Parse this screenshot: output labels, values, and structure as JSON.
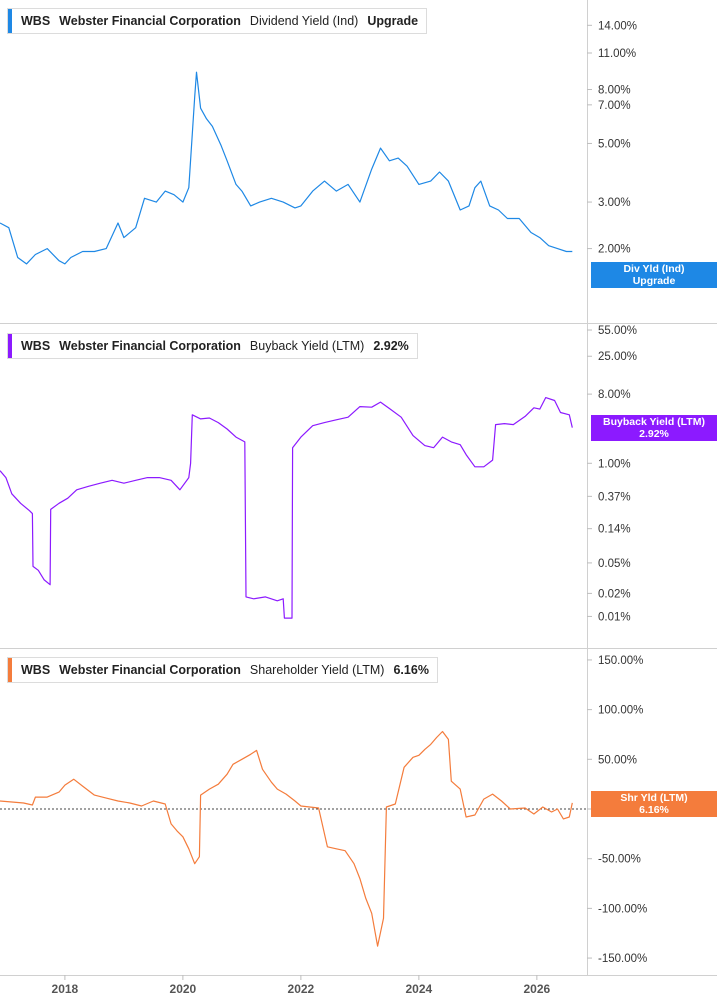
{
  "panels": [
    {
      "ticker": "WBS",
      "company": "Webster Financial Corporation",
      "metric": "Dividend Yield (Ind)",
      "value": "Upgrade",
      "color": "#1e88e5",
      "tag_line1": "Div Yld (Ind)",
      "tag_line2": "Upgrade"
    },
    {
      "ticker": "WBS",
      "company": "Webster Financial Corporation",
      "metric": "Buyback Yield (LTM)",
      "value": "2.92%",
      "color": "#8c1aff",
      "tag_line1": "Buyback Yield (LTM)",
      "tag_line2": "2.92%"
    },
    {
      "ticker": "WBS",
      "company": "Webster Financial Corporation",
      "metric": "Shareholder Yield (LTM)",
      "value": "6.16%",
      "color": "#f47c3c",
      "tag_line1": "Shr Yld (LTM)",
      "tag_line2": "6.16%"
    }
  ],
  "chart_data": [
    {
      "type": "line",
      "title": "WBS Webster Financial Corporation Dividend Yield (Ind)",
      "yscale": "log",
      "ylim": [
        1.3,
        16
      ],
      "xlim": [
        2016.9,
        2026.85
      ],
      "y_ticks": [
        "14.00%",
        "11.00%",
        "8.00%",
        "7.00%",
        "5.00%",
        "3.00%",
        "2.00%"
      ],
      "y_tick_values": [
        14,
        11,
        8,
        7,
        5,
        3,
        2
      ],
      "series": [
        {
          "values": [
            [
              2016.9,
              2.5
            ],
            [
              2017.05,
              2.4
            ],
            [
              2017.2,
              1.85
            ],
            [
              2017.35,
              1.75
            ],
            [
              2017.5,
              1.9
            ],
            [
              2017.7,
              2.0
            ],
            [
              2017.9,
              1.8
            ],
            [
              2018.0,
              1.75
            ],
            [
              2018.1,
              1.85
            ],
            [
              2018.3,
              1.95
            ],
            [
              2018.5,
              1.95
            ],
            [
              2018.7,
              2.0
            ],
            [
              2018.9,
              2.5
            ],
            [
              2019.0,
              2.2
            ],
            [
              2019.2,
              2.4
            ],
            [
              2019.35,
              3.1
            ],
            [
              2019.55,
              3.0
            ],
            [
              2019.7,
              3.3
            ],
            [
              2019.85,
              3.2
            ],
            [
              2020.0,
              3.0
            ],
            [
              2020.1,
              3.4
            ],
            [
              2020.2,
              7.5
            ],
            [
              2020.23,
              9.3
            ],
            [
              2020.3,
              6.8
            ],
            [
              2020.4,
              6.2
            ],
            [
              2020.5,
              5.8
            ],
            [
              2020.65,
              4.9
            ],
            [
              2020.75,
              4.3
            ],
            [
              2020.9,
              3.5
            ],
            [
              2021.0,
              3.3
            ],
            [
              2021.15,
              2.9
            ],
            [
              2021.3,
              3.0
            ],
            [
              2021.5,
              3.1
            ],
            [
              2021.7,
              3.0
            ],
            [
              2021.9,
              2.85
            ],
            [
              2022.0,
              2.9
            ],
            [
              2022.2,
              3.3
            ],
            [
              2022.4,
              3.6
            ],
            [
              2022.6,
              3.3
            ],
            [
              2022.8,
              3.5
            ],
            [
              2023.0,
              3.0
            ],
            [
              2023.2,
              4.0
            ],
            [
              2023.35,
              4.8
            ],
            [
              2023.5,
              4.3
            ],
            [
              2023.65,
              4.4
            ],
            [
              2023.8,
              4.1
            ],
            [
              2024.0,
              3.5
            ],
            [
              2024.2,
              3.6
            ],
            [
              2024.35,
              3.9
            ],
            [
              2024.5,
              3.6
            ],
            [
              2024.7,
              2.8
            ],
            [
              2024.85,
              2.9
            ],
            [
              2024.95,
              3.4
            ],
            [
              2025.05,
              3.6
            ],
            [
              2025.2,
              2.9
            ],
            [
              2025.35,
              2.8
            ],
            [
              2025.5,
              2.6
            ],
            [
              2025.7,
              2.6
            ],
            [
              2025.9,
              2.3
            ],
            [
              2026.05,
              2.2
            ],
            [
              2026.2,
              2.05
            ],
            [
              2026.35,
              2.0
            ],
            [
              2026.5,
              1.95
            ],
            [
              2026.6,
              1.95
            ]
          ]
        }
      ]
    },
    {
      "type": "line",
      "title": "WBS Webster Financial Corporation Buyback Yield (LTM)",
      "yscale": "log",
      "ylim": [
        0.0075,
        70
      ],
      "xlim": [
        2016.9,
        2026.85
      ],
      "y_ticks": [
        "55.00%",
        "25.00%",
        "8.00%",
        "1.00%",
        "0.37%",
        "0.14%",
        "0.05%",
        "0.02%",
        "0.01%"
      ],
      "y_tick_values": [
        55,
        25,
        8,
        1,
        0.37,
        0.14,
        0.05,
        0.02,
        0.01
      ],
      "series": [
        {
          "values": [
            [
              2016.9,
              0.8
            ],
            [
              2017.0,
              0.65
            ],
            [
              2017.1,
              0.4
            ],
            [
              2017.25,
              0.3
            ],
            [
              2017.4,
              0.24
            ],
            [
              2017.45,
              0.22
            ],
            [
              2017.46,
              0.045
            ],
            [
              2017.55,
              0.04
            ],
            [
              2017.65,
              0.03
            ],
            [
              2017.75,
              0.026
            ],
            [
              2017.76,
              0.25
            ],
            [
              2017.9,
              0.3
            ],
            [
              2018.05,
              0.35
            ],
            [
              2018.2,
              0.45
            ],
            [
              2018.4,
              0.5
            ],
            [
              2018.6,
              0.55
            ],
            [
              2018.8,
              0.6
            ],
            [
              2019.0,
              0.55
            ],
            [
              2019.2,
              0.6
            ],
            [
              2019.4,
              0.65
            ],
            [
              2019.6,
              0.65
            ],
            [
              2019.8,
              0.6
            ],
            [
              2019.95,
              0.45
            ],
            [
              2020.1,
              0.65
            ],
            [
              2020.13,
              1.0
            ],
            [
              2020.16,
              4.3
            ],
            [
              2020.3,
              3.8
            ],
            [
              2020.45,
              3.9
            ],
            [
              2020.6,
              3.4
            ],
            [
              2020.75,
              2.8
            ],
            [
              2020.9,
              2.2
            ],
            [
              2021.05,
              1.9
            ],
            [
              2021.07,
              0.018
            ],
            [
              2021.2,
              0.017
            ],
            [
              2021.4,
              0.018
            ],
            [
              2021.6,
              0.016
            ],
            [
              2021.7,
              0.017
            ],
            [
              2021.72,
              0.0095
            ],
            [
              2021.85,
              0.0095
            ],
            [
              2021.86,
              1.6
            ],
            [
              2022.0,
              2.2
            ],
            [
              2022.2,
              3.1
            ],
            [
              2022.4,
              3.4
            ],
            [
              2022.6,
              3.7
            ],
            [
              2022.8,
              4.0
            ],
            [
              2023.0,
              5.5
            ],
            [
              2023.2,
              5.4
            ],
            [
              2023.35,
              6.3
            ],
            [
              2023.5,
              5.2
            ],
            [
              2023.7,
              4.0
            ],
            [
              2023.9,
              2.3
            ],
            [
              2024.1,
              1.7
            ],
            [
              2024.25,
              1.6
            ],
            [
              2024.4,
              2.2
            ],
            [
              2024.55,
              1.9
            ],
            [
              2024.7,
              1.75
            ],
            [
              2024.8,
              1.3
            ],
            [
              2024.95,
              0.9
            ],
            [
              2025.1,
              0.9
            ],
            [
              2025.25,
              1.1
            ],
            [
              2025.3,
              3.2
            ],
            [
              2025.45,
              3.3
            ],
            [
              2025.6,
              3.2
            ],
            [
              2025.8,
              4.1
            ],
            [
              2025.95,
              5.3
            ],
            [
              2026.05,
              5.1
            ],
            [
              2026.15,
              7.2
            ],
            [
              2026.3,
              6.6
            ],
            [
              2026.4,
              4.6
            ],
            [
              2026.55,
              4.3
            ],
            [
              2026.6,
              2.92
            ]
          ]
        }
      ]
    },
    {
      "type": "line",
      "title": "WBS Webster Financial Corporation Shareholder Yield (LTM)",
      "yscale": "linear",
      "ylim": [
        -160,
        160
      ],
      "xlim": [
        2016.9,
        2026.85
      ],
      "y_ticks": [
        "150.00%",
        "100.00%",
        "50.00%",
        "0.00%",
        "-50.00%",
        "-100.00%",
        "-150.00%"
      ],
      "y_tick_values": [
        150,
        100,
        50,
        0,
        -50,
        -100,
        -150
      ],
      "series": [
        {
          "values": [
            [
              2016.9,
              8
            ],
            [
              2017.1,
              7
            ],
            [
              2017.3,
              6
            ],
            [
              2017.45,
              4
            ],
            [
              2017.5,
              12
            ],
            [
              2017.7,
              12
            ],
            [
              2017.9,
              17
            ],
            [
              2018.0,
              24
            ],
            [
              2018.15,
              30
            ],
            [
              2018.3,
              23
            ],
            [
              2018.5,
              14
            ],
            [
              2018.7,
              11
            ],
            [
              2018.9,
              8
            ],
            [
              2019.1,
              6
            ],
            [
              2019.3,
              3
            ],
            [
              2019.5,
              8
            ],
            [
              2019.7,
              5
            ],
            [
              2019.8,
              -15
            ],
            [
              2019.9,
              -22
            ],
            [
              2020.0,
              -28
            ],
            [
              2020.1,
              -40
            ],
            [
              2020.2,
              -55
            ],
            [
              2020.28,
              -48
            ],
            [
              2020.3,
              14
            ],
            [
              2020.45,
              20
            ],
            [
              2020.6,
              25
            ],
            [
              2020.75,
              35
            ],
            [
              2020.85,
              45
            ],
            [
              2021.0,
              50
            ],
            [
              2021.15,
              55
            ],
            [
              2021.25,
              59
            ],
            [
              2021.35,
              40
            ],
            [
              2021.5,
              27
            ],
            [
              2021.6,
              20
            ],
            [
              2021.75,
              15
            ],
            [
              2021.9,
              8
            ],
            [
              2022.0,
              3
            ],
            [
              2022.15,
              2
            ],
            [
              2022.3,
              1
            ],
            [
              2022.45,
              -38
            ],
            [
              2022.6,
              -40
            ],
            [
              2022.75,
              -42
            ],
            [
              2022.9,
              -55
            ],
            [
              2023.0,
              -70
            ],
            [
              2023.1,
              -90
            ],
            [
              2023.2,
              -105
            ],
            [
              2023.3,
              -138
            ],
            [
              2023.4,
              -110
            ],
            [
              2023.45,
              2
            ],
            [
              2023.6,
              5
            ],
            [
              2023.75,
              42
            ],
            [
              2023.9,
              52
            ],
            [
              2024.0,
              54
            ],
            [
              2024.1,
              60
            ],
            [
              2024.2,
              65
            ],
            [
              2024.3,
              72
            ],
            [
              2024.4,
              78
            ],
            [
              2024.5,
              70
            ],
            [
              2024.55,
              28
            ],
            [
              2024.7,
              20
            ],
            [
              2024.8,
              -8
            ],
            [
              2024.95,
              -6
            ],
            [
              2025.1,
              10
            ],
            [
              2025.25,
              15
            ],
            [
              2025.4,
              8
            ],
            [
              2025.55,
              0
            ],
            [
              2025.8,
              1
            ],
            [
              2025.95,
              -5
            ],
            [
              2026.1,
              2
            ],
            [
              2026.25,
              -3
            ],
            [
              2026.35,
              0
            ],
            [
              2026.45,
              -10
            ],
            [
              2026.55,
              -8
            ],
            [
              2026.6,
              6.16
            ]
          ]
        }
      ]
    }
  ],
  "x_axis": {
    "labels": [
      "2018",
      "2020",
      "2022",
      "2024",
      "2026"
    ],
    "values": [
      2018,
      2020,
      2022,
      2024,
      2026
    ]
  }
}
